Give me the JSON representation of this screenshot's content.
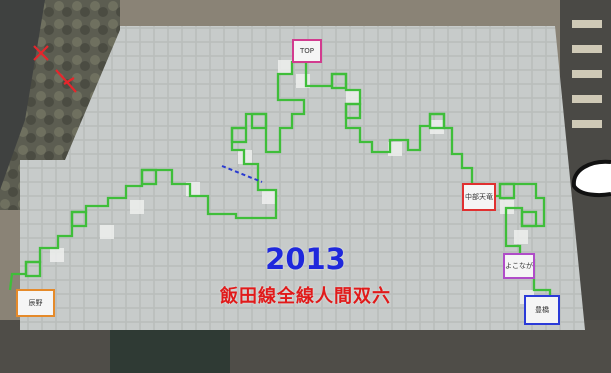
{
  "caption": {
    "year": "2013",
    "title": "飯田線全線人間双六"
  },
  "markers": {
    "top": "TOP",
    "right_mid": "中部天竜",
    "right_lower": "よこなが",
    "bottom_right": "豊橋",
    "bottom_left": "辰野"
  },
  "colors": {
    "path": "#3fbe3a",
    "year": "#1f28dc",
    "title": "#e11a1a",
    "compass": "#e5262c"
  }
}
